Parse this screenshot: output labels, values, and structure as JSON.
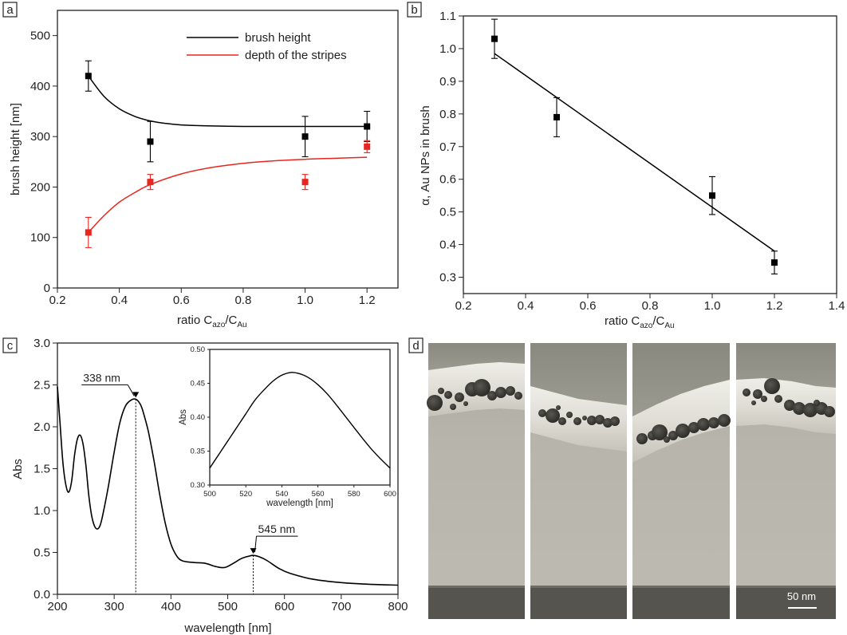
{
  "chart_data": [
    {
      "panel": "a",
      "type": "scatter",
      "xlabel": "ratio C",
      "xlabel_sub1": "azo",
      "xlabel_mid": "/C",
      "xlabel_sub2": "Au",
      "ylabel": "brush height [nm]",
      "xlim": [
        0.2,
        1.3
      ],
      "ylim": [
        0,
        550
      ],
      "xticks": [
        "0.2",
        "0.4",
        "0.6",
        "0.8",
        "1.0",
        "1.2"
      ],
      "yticks": [
        "0",
        "100",
        "200",
        "300",
        "400",
        "500"
      ],
      "legend_position": "top-right",
      "series": [
        {
          "name": "brush height",
          "color": "#000000",
          "x": [
            0.3,
            0.5,
            1.0,
            1.2
          ],
          "y": [
            420,
            290,
            300,
            320
          ],
          "err": [
            30,
            40,
            40,
            30
          ],
          "fit_x": [
            0.3,
            0.35,
            0.4,
            0.45,
            0.5,
            0.55,
            0.6,
            0.7,
            0.8,
            0.9,
            1.0,
            1.1,
            1.2
          ],
          "fit_y": [
            420,
            380,
            355,
            340,
            331,
            326,
            323,
            321,
            320,
            320,
            320,
            320,
            320
          ]
        },
        {
          "name": "depth of the stripes",
          "color": "#e8261f",
          "x": [
            0.3,
            0.5,
            1.0,
            1.2
          ],
          "y": [
            110,
            210,
            210,
            280
          ],
          "err": [
            30,
            15,
            15,
            12
          ],
          "fit_x": [
            0.3,
            0.35,
            0.4,
            0.45,
            0.5,
            0.6,
            0.7,
            0.8,
            0.9,
            1.0,
            1.1,
            1.2
          ],
          "fit_y": [
            110,
            143,
            170,
            189,
            205,
            226,
            239,
            247,
            252,
            255,
            257,
            259
          ]
        }
      ]
    },
    {
      "panel": "b",
      "type": "scatter",
      "xlabel": "ratio C",
      "xlabel_sub1": "azo",
      "xlabel_mid": "/C",
      "xlabel_sub2": "Au",
      "ylabel": "α, Au NPs in brush",
      "xlim": [
        0.2,
        1.4
      ],
      "ylim": [
        0.25,
        1.1
      ],
      "xticks": [
        "0.2",
        "0.4",
        "0.6",
        "0.8",
        "1.0",
        "1.2",
        "1.4"
      ],
      "yticks": [
        "0.3",
        "0.4",
        "0.5",
        "0.6",
        "0.7",
        "0.8",
        "0.9",
        "1.0",
        "1.1"
      ],
      "series": [
        {
          "color": "#000000",
          "x": [
            0.3,
            0.5,
            1.0,
            1.2
          ],
          "y": [
            1.03,
            0.79,
            0.55,
            0.345
          ],
          "err": [
            0.06,
            0.06,
            0.058,
            0.035
          ],
          "fit_x": [
            0.3,
            1.2
          ],
          "fit_y": [
            0.985,
            0.38
          ]
        }
      ]
    },
    {
      "panel": "c",
      "type": "line",
      "xlabel": "wavelength [nm]",
      "ylabel": "Abs",
      "xlim": [
        200,
        800
      ],
      "ylim": [
        0,
        3.0
      ],
      "xticks": [
        "200",
        "300",
        "400",
        "500",
        "600",
        "700",
        "800"
      ],
      "yticks": [
        "0.0",
        "0.5",
        "1.0",
        "1.5",
        "2.0",
        "2.5",
        "3.0"
      ],
      "series": [
        {
          "color": "#000000",
          "x": [
            200,
            205,
            210,
            215,
            220,
            225,
            230,
            235,
            240,
            245,
            250,
            255,
            260,
            265,
            270,
            275,
            280,
            290,
            300,
            310,
            320,
            330,
            338,
            345,
            350,
            360,
            370,
            380,
            390,
            400,
            410,
            420,
            440,
            460,
            480,
            495,
            510,
            525,
            540,
            545,
            555,
            570,
            590,
            610,
            650,
            700,
            750,
            800
          ],
          "y": [
            2.48,
            2.0,
            1.55,
            1.3,
            1.22,
            1.35,
            1.65,
            1.85,
            1.9,
            1.8,
            1.55,
            1.2,
            0.95,
            0.82,
            0.78,
            0.82,
            0.95,
            1.3,
            1.7,
            2.05,
            2.25,
            2.32,
            2.33,
            2.28,
            2.2,
            1.95,
            1.6,
            1.2,
            0.85,
            0.6,
            0.46,
            0.4,
            0.38,
            0.37,
            0.33,
            0.32,
            0.37,
            0.43,
            0.46,
            0.465,
            0.45,
            0.4,
            0.31,
            0.25,
            0.18,
            0.14,
            0.12,
            0.11
          ]
        }
      ],
      "annotations": [
        {
          "text": "338 nm",
          "x": 338,
          "y": 2.33
        },
        {
          "text": "545 nm",
          "x": 545,
          "y": 0.465
        }
      ],
      "inset": {
        "type": "line",
        "xlabel": "wavelength [nm]",
        "ylabel": "Abs",
        "xlim": [
          500,
          600
        ],
        "ylim": [
          0.3,
          0.5
        ],
        "xticks": [
          "500",
          "520",
          "540",
          "560",
          "580",
          "600"
        ],
        "yticks": [
          "0.30",
          "0.35",
          "0.40",
          "0.45",
          "0.50"
        ],
        "x": [
          500,
          505,
          510,
          515,
          520,
          525,
          530,
          535,
          540,
          545,
          550,
          555,
          560,
          565,
          570,
          575,
          580,
          585,
          590,
          595,
          600
        ],
        "y": [
          0.325,
          0.345,
          0.365,
          0.385,
          0.405,
          0.425,
          0.44,
          0.453,
          0.462,
          0.466,
          0.464,
          0.458,
          0.448,
          0.435,
          0.419,
          0.402,
          0.385,
          0.368,
          0.352,
          0.338,
          0.325
        ]
      }
    }
  ],
  "panels": {
    "a": "a",
    "b": "b",
    "c": "c",
    "d": "d"
  },
  "micrograph": {
    "scale_bar_label": "50 nm"
  }
}
